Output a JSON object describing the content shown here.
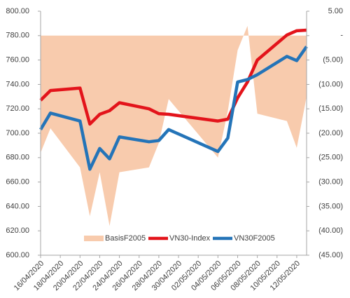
{
  "chart_data": {
    "type": "combo",
    "x": [
      "16/04/2020",
      "17/04/2020",
      "20/04/2020",
      "21/04/2020",
      "22/04/2020",
      "23/04/2020",
      "24/04/2020",
      "27/04/2020",
      "28/04/2020",
      "29/04/2020",
      "04/05/2020",
      "05/05/2020",
      "06/05/2020",
      "07/05/2020",
      "08/05/2020",
      "11/05/2020",
      "12/05/2020",
      "13/05/2020"
    ],
    "xlim": [
      "16/04/2020",
      "13/05/2020"
    ],
    "xticks": [
      "16/04/2020",
      "18/04/2020",
      "20/04/2020",
      "22/04/2020",
      "24/04/2020",
      "26/04/2020",
      "28/04/2020",
      "30/04/2020",
      "02/05/2020",
      "04/05/2020",
      "06/05/2020",
      "08/05/2020",
      "10/05/2020",
      "12/05/2020"
    ],
    "ylim": [
      600,
      800
    ],
    "yticks": [
      {
        "value": 600,
        "label": "600.00"
      },
      {
        "value": 620,
        "label": "620.00"
      },
      {
        "value": 640,
        "label": "640.00"
      },
      {
        "value": 660,
        "label": "660.00"
      },
      {
        "value": 680,
        "label": "680.00"
      },
      {
        "value": 700,
        "label": "700.00"
      },
      {
        "value": 720,
        "label": "720.00"
      },
      {
        "value": 740,
        "label": "740.00"
      },
      {
        "value": 760,
        "label": "760.00"
      },
      {
        "value": 780,
        "label": "780.00"
      },
      {
        "value": 800,
        "label": "800.00"
      }
    ],
    "y2lim": [
      -45,
      5
    ],
    "y2ticks": [
      {
        "value": 5,
        "label": "5.00"
      },
      {
        "value": 0,
        "label": "-"
      },
      {
        "value": -5,
        "label": "(5.00)"
      },
      {
        "value": -10,
        "label": "(10.00)"
      },
      {
        "value": -15,
        "label": "(15.00)"
      },
      {
        "value": -20,
        "label": "(20.00)"
      },
      {
        "value": -25,
        "label": "(25.00)"
      },
      {
        "value": -30,
        "label": "(30.00)"
      },
      {
        "value": -35,
        "label": "(35.00)"
      },
      {
        "value": -40,
        "label": "(40.00)"
      },
      {
        "value": -45,
        "label": "(45.00)"
      }
    ],
    "grid": false,
    "legend": "bottom",
    "series": [
      {
        "name": "BasisF2005",
        "type": "area",
        "axis": "y2",
        "color": "#f8cbad",
        "values": [
          -24,
          -19,
          -27,
          -37,
          -28,
          -39,
          -28,
          -27,
          -22,
          -13,
          -25,
          -15.5,
          -3,
          2,
          -16,
          -17.5,
          -23,
          -12.5
        ]
      },
      {
        "name": "VN30-Index",
        "type": "line",
        "color": "#e3141b",
        "values": [
          727,
          735,
          737,
          707.5,
          715.5,
          718.5,
          725,
          720,
          716,
          715.5,
          710,
          711.5,
          729,
          742,
          760,
          780.5,
          784,
          784.5
        ]
      },
      {
        "name": "VN30F2005",
        "type": "line",
        "color": "#2474b8",
        "values": [
          703,
          716.5,
          710,
          670.5,
          687.5,
          679,
          697,
          693,
          694,
          703,
          685,
          696,
          742,
          744,
          748,
          763,
          759.5,
          771
        ]
      }
    ]
  }
}
